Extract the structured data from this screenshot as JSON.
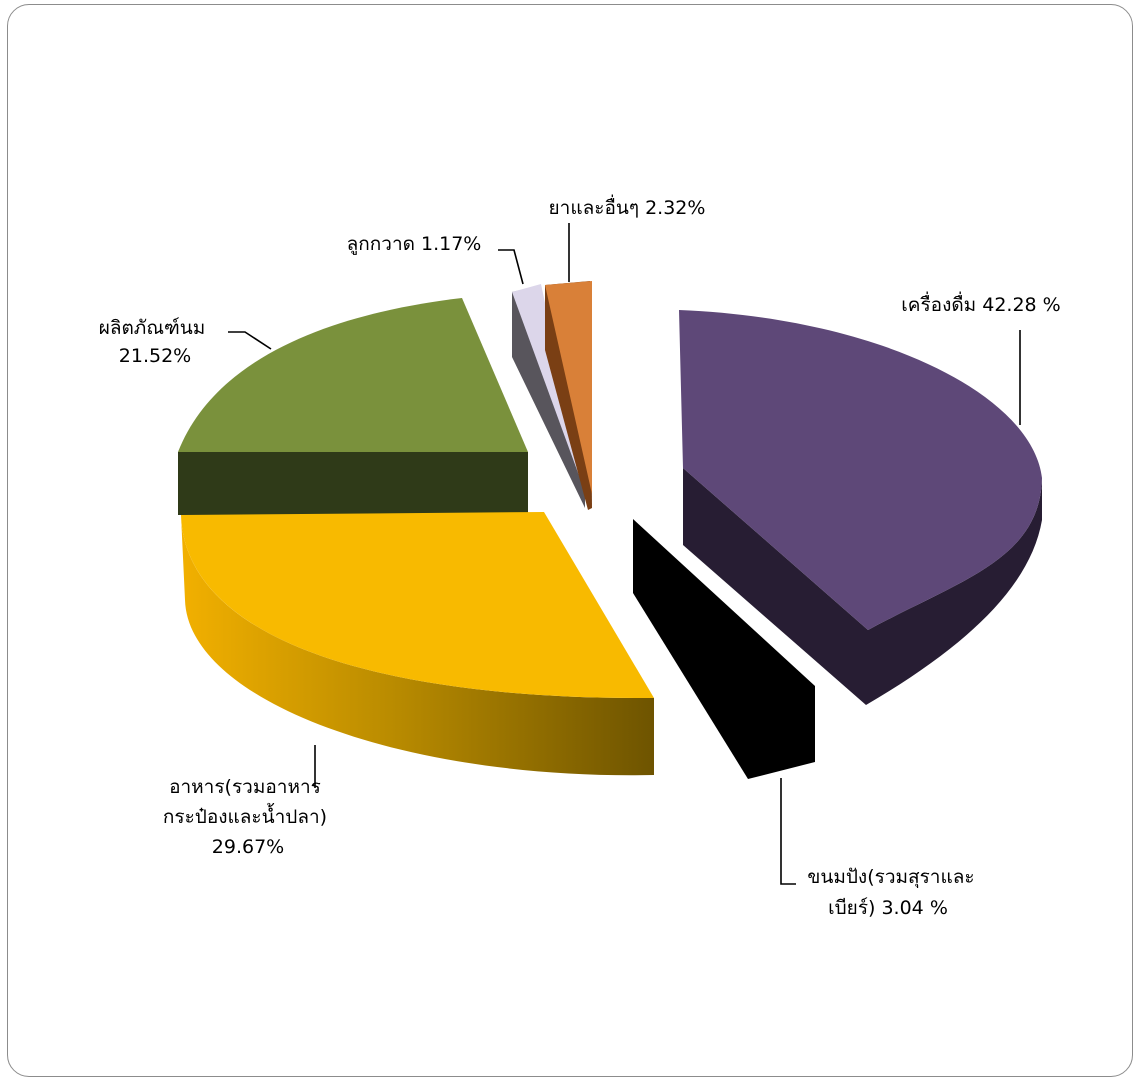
{
  "chart_data": {
    "type": "pie",
    "title": "",
    "legend": "none",
    "three_d": true,
    "exploded": true,
    "slices": [
      {
        "name": "เครื่องดื่ม",
        "value": 42.28,
        "label_lines": [
          "เครื่องดื่ม  42.28 %"
        ],
        "color": "#5e4878"
      },
      {
        "name": "ขนมปัง(รวมสุราและเบียร์)",
        "value": 3.04,
        "label_lines": [
          "ขนมปัง(รวมสุราและ",
          "เบียร์)  3.04 %"
        ],
        "color": "#000000"
      },
      {
        "name": "อาหาร(รวมอาหารกระป๋องและน้ำปลา)",
        "value": 29.67,
        "label_lines": [
          "อาหาร(รวมอาหาร",
          "กระป๋องและน้ำปลา)",
          "29.67%"
        ],
        "color": "#f8ba00"
      },
      {
        "name": "ผลิตภัณฑ์นม",
        "value": 21.52,
        "label_lines": [
          "ผลิตภัณฑ์นม",
          "21.52%"
        ],
        "color": "#7a913c"
      },
      {
        "name": "ลูกกวาด",
        "value": 1.17,
        "label_lines": [
          "ลูกกวาด  1.17%"
        ],
        "color": "#dcd6ea"
      },
      {
        "name": "ยาและอื่นๆ",
        "value": 2.32,
        "label_lines": [
          "ยาและอื่นๆ  2.32%"
        ],
        "color": "#d98038"
      }
    ]
  }
}
